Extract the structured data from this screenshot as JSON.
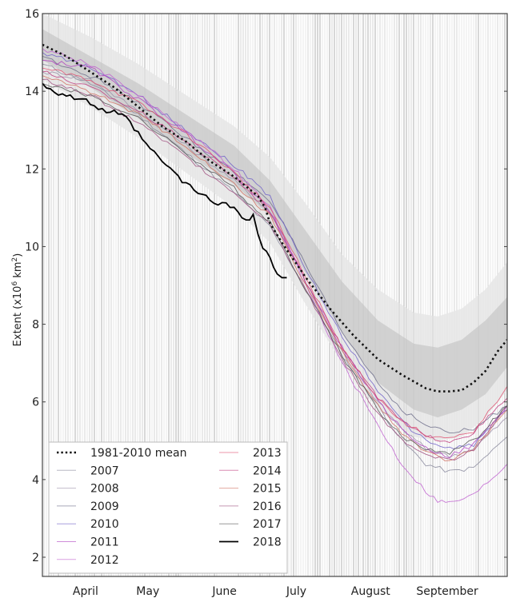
{
  "chart_data": {
    "type": "line",
    "title": "",
    "xlabel": "",
    "ylabel": "Extent (x10^6 km^2)",
    "ylabel_parts": {
      "prefix": "Extent (x10",
      "exp1": "6",
      "mid": " km",
      "exp2": "2",
      "suffix": ")"
    },
    "ylim": [
      1.5,
      16
    ],
    "y_ticks": [
      2,
      4,
      6,
      8,
      10,
      12,
      14,
      16
    ],
    "x_unit": "day of season (0 = ~21 March)",
    "xlim": [
      0,
      194
    ],
    "month_ticks": [
      {
        "label": "April",
        "day": 18
      },
      {
        "label": "May",
        "day": 44
      },
      {
        "label": "June",
        "day": 76
      },
      {
        "label": "July",
        "day": 106
      },
      {
        "label": "August",
        "day": 137
      },
      {
        "label": "September",
        "day": 169
      }
    ],
    "grid": "dense vertical daily lines",
    "legend_position": "bottom-left",
    "bands": {
      "outer_color": "#e6e6e6",
      "inner_color": "#cccccc",
      "x": [
        0,
        20,
        40,
        60,
        80,
        95,
        110,
        125,
        140,
        155,
        165,
        175,
        185,
        194
      ],
      "outer_upper": [
        16.0,
        15.4,
        14.7,
        13.9,
        13.1,
        12.3,
        11.1,
        9.8,
        8.9,
        8.3,
        8.2,
        8.4,
        8.9,
        9.6
      ],
      "inner_upper": [
        15.6,
        14.9,
        14.2,
        13.4,
        12.6,
        11.7,
        10.4,
        9.1,
        8.1,
        7.5,
        7.4,
        7.6,
        8.1,
        8.7
      ],
      "inner_lower": [
        14.8,
        14.1,
        13.3,
        12.4,
        11.6,
        10.8,
        9.3,
        7.8,
        6.5,
        5.8,
        5.6,
        5.8,
        6.2,
        6.9
      ],
      "outer_lower": [
        14.3,
        13.6,
        12.8,
        11.9,
        11.0,
        10.1,
        8.5,
        7.0,
        5.8,
        5.1,
        5.0,
        5.1,
        5.6,
        6.3
      ]
    },
    "series": [
      {
        "name": "1981-2010 mean",
        "color": "#111111",
        "style": "dotted",
        "x": [
          0,
          10,
          20,
          30,
          40,
          50,
          60,
          70,
          80,
          90,
          93,
          95,
          100,
          110,
          120,
          130,
          140,
          150,
          160,
          165,
          170,
          175,
          180,
          185,
          190,
          194
        ],
        "y": [
          15.2,
          14.9,
          14.5,
          14.1,
          13.6,
          13.1,
          12.7,
          12.2,
          11.8,
          11.3,
          11.0,
          10.6,
          10.1,
          9.2,
          8.4,
          7.7,
          7.1,
          6.7,
          6.35,
          6.27,
          6.27,
          6.3,
          6.5,
          6.8,
          7.3,
          7.6
        ]
      },
      {
        "name": "2007",
        "color": "#8a8a9e",
        "style": "solid",
        "x": [
          0,
          20,
          40,
          60,
          80,
          95,
          110,
          125,
          140,
          150,
          160,
          170,
          180,
          194
        ],
        "y": [
          14.7,
          14.2,
          13.4,
          12.4,
          11.4,
          10.5,
          8.9,
          7.2,
          5.9,
          5.0,
          4.4,
          4.2,
          4.3,
          5.1
        ]
      },
      {
        "name": "2008",
        "color": "#9b8fa8",
        "style": "solid",
        "x": [
          0,
          20,
          40,
          60,
          80,
          95,
          110,
          125,
          140,
          150,
          160,
          170,
          180,
          194
        ],
        "y": [
          14.5,
          14.3,
          13.5,
          12.6,
          11.7,
          10.9,
          9.1,
          7.3,
          6.0,
          5.3,
          4.8,
          4.6,
          4.8,
          5.6
        ]
      },
      {
        "name": "2009",
        "color": "#6d6d8a",
        "style": "solid",
        "x": [
          0,
          20,
          40,
          60,
          80,
          95,
          110,
          125,
          140,
          150,
          160,
          170,
          180,
          194
        ],
        "y": [
          14.9,
          14.4,
          13.7,
          12.8,
          11.9,
          11.2,
          9.5,
          7.8,
          6.5,
          5.8,
          5.4,
          5.2,
          5.3,
          5.9
        ]
      },
      {
        "name": "2010",
        "color": "#7060c8",
        "style": "solid",
        "x": [
          0,
          20,
          40,
          60,
          80,
          95,
          110,
          125,
          140,
          150,
          160,
          170,
          180,
          194
        ],
        "y": [
          15.0,
          14.6,
          13.9,
          13.0,
          12.1,
          11.3,
          9.4,
          7.7,
          6.3,
          5.5,
          5.0,
          4.8,
          4.9,
          5.8
        ]
      },
      {
        "name": "2011",
        "color": "#b040c0",
        "style": "solid",
        "x": [
          0,
          20,
          40,
          60,
          80,
          95,
          110,
          125,
          140,
          150,
          160,
          170,
          180,
          194
        ],
        "y": [
          14.8,
          14.6,
          13.8,
          12.9,
          11.9,
          10.9,
          9.1,
          7.4,
          6.0,
          5.3,
          4.8,
          4.6,
          4.9,
          5.9
        ]
      },
      {
        "name": "2012",
        "color": "#c060d0",
        "style": "solid",
        "x": [
          0,
          20,
          40,
          60,
          80,
          95,
          110,
          125,
          140,
          150,
          160,
          165,
          170,
          180,
          194
        ],
        "y": [
          15.1,
          14.7,
          13.9,
          13.0,
          12.0,
          11.0,
          9.0,
          7.0,
          5.4,
          4.4,
          3.7,
          3.45,
          3.4,
          3.6,
          4.4
        ]
      },
      {
        "name": "2013",
        "color": "#e05070",
        "style": "solid",
        "x": [
          0,
          20,
          40,
          60,
          80,
          95,
          110,
          125,
          140,
          150,
          160,
          170,
          180,
          194
        ],
        "y": [
          14.6,
          14.3,
          13.7,
          12.9,
          11.9,
          11.0,
          9.2,
          7.4,
          6.1,
          5.5,
          5.15,
          5.05,
          5.2,
          6.4
        ]
      },
      {
        "name": "2014",
        "color": "#c04080",
        "style": "solid",
        "x": [
          0,
          20,
          40,
          60,
          80,
          95,
          110,
          125,
          140,
          150,
          160,
          170,
          180,
          194
        ],
        "y": [
          14.5,
          14.1,
          13.5,
          12.7,
          11.8,
          10.9,
          9.1,
          7.4,
          6.1,
          5.5,
          5.1,
          5.0,
          5.2,
          6.1
        ]
      },
      {
        "name": "2015",
        "color": "#d07060",
        "style": "solid",
        "x": [
          0,
          20,
          40,
          60,
          80,
          95,
          110,
          125,
          140,
          150,
          160,
          170,
          180,
          194
        ],
        "y": [
          14.4,
          14.0,
          13.4,
          12.6,
          11.6,
          10.8,
          9.0,
          7.3,
          5.9,
          5.2,
          4.7,
          4.5,
          4.8,
          5.8
        ]
      },
      {
        "name": "2016",
        "color": "#a05080",
        "style": "solid",
        "x": [
          0,
          20,
          40,
          60,
          80,
          95,
          110,
          125,
          140,
          150,
          160,
          170,
          180,
          194
        ],
        "y": [
          14.3,
          13.9,
          13.2,
          12.3,
          11.4,
          10.6,
          8.9,
          7.1,
          5.7,
          5.0,
          4.6,
          4.5,
          4.8,
          5.9
        ]
      },
      {
        "name": "2017",
        "color": "#555555",
        "style": "solid",
        "x": [
          0,
          20,
          40,
          60,
          80,
          95,
          110,
          125,
          140,
          150,
          160,
          170,
          180,
          194
        ],
        "y": [
          14.2,
          13.9,
          13.3,
          12.4,
          11.5,
          10.6,
          8.9,
          7.2,
          5.8,
          5.1,
          4.8,
          4.7,
          5.0,
          5.9
        ]
      },
      {
        "name": "2018",
        "color": "#000000",
        "style": "solid-bold",
        "x": [
          0,
          5,
          10,
          15,
          20,
          25,
          30,
          35,
          40,
          45,
          50,
          55,
          60,
          65,
          70,
          75,
          80,
          85,
          88,
          90,
          92,
          95,
          98,
          100,
          102
        ],
        "y": [
          14.2,
          14.0,
          13.9,
          13.8,
          13.7,
          13.5,
          13.45,
          13.3,
          12.9,
          12.5,
          12.2,
          11.9,
          11.6,
          11.4,
          11.2,
          11.1,
          11.0,
          10.7,
          10.8,
          10.3,
          10.0,
          9.7,
          9.3,
          9.15,
          9.2
        ]
      }
    ]
  }
}
